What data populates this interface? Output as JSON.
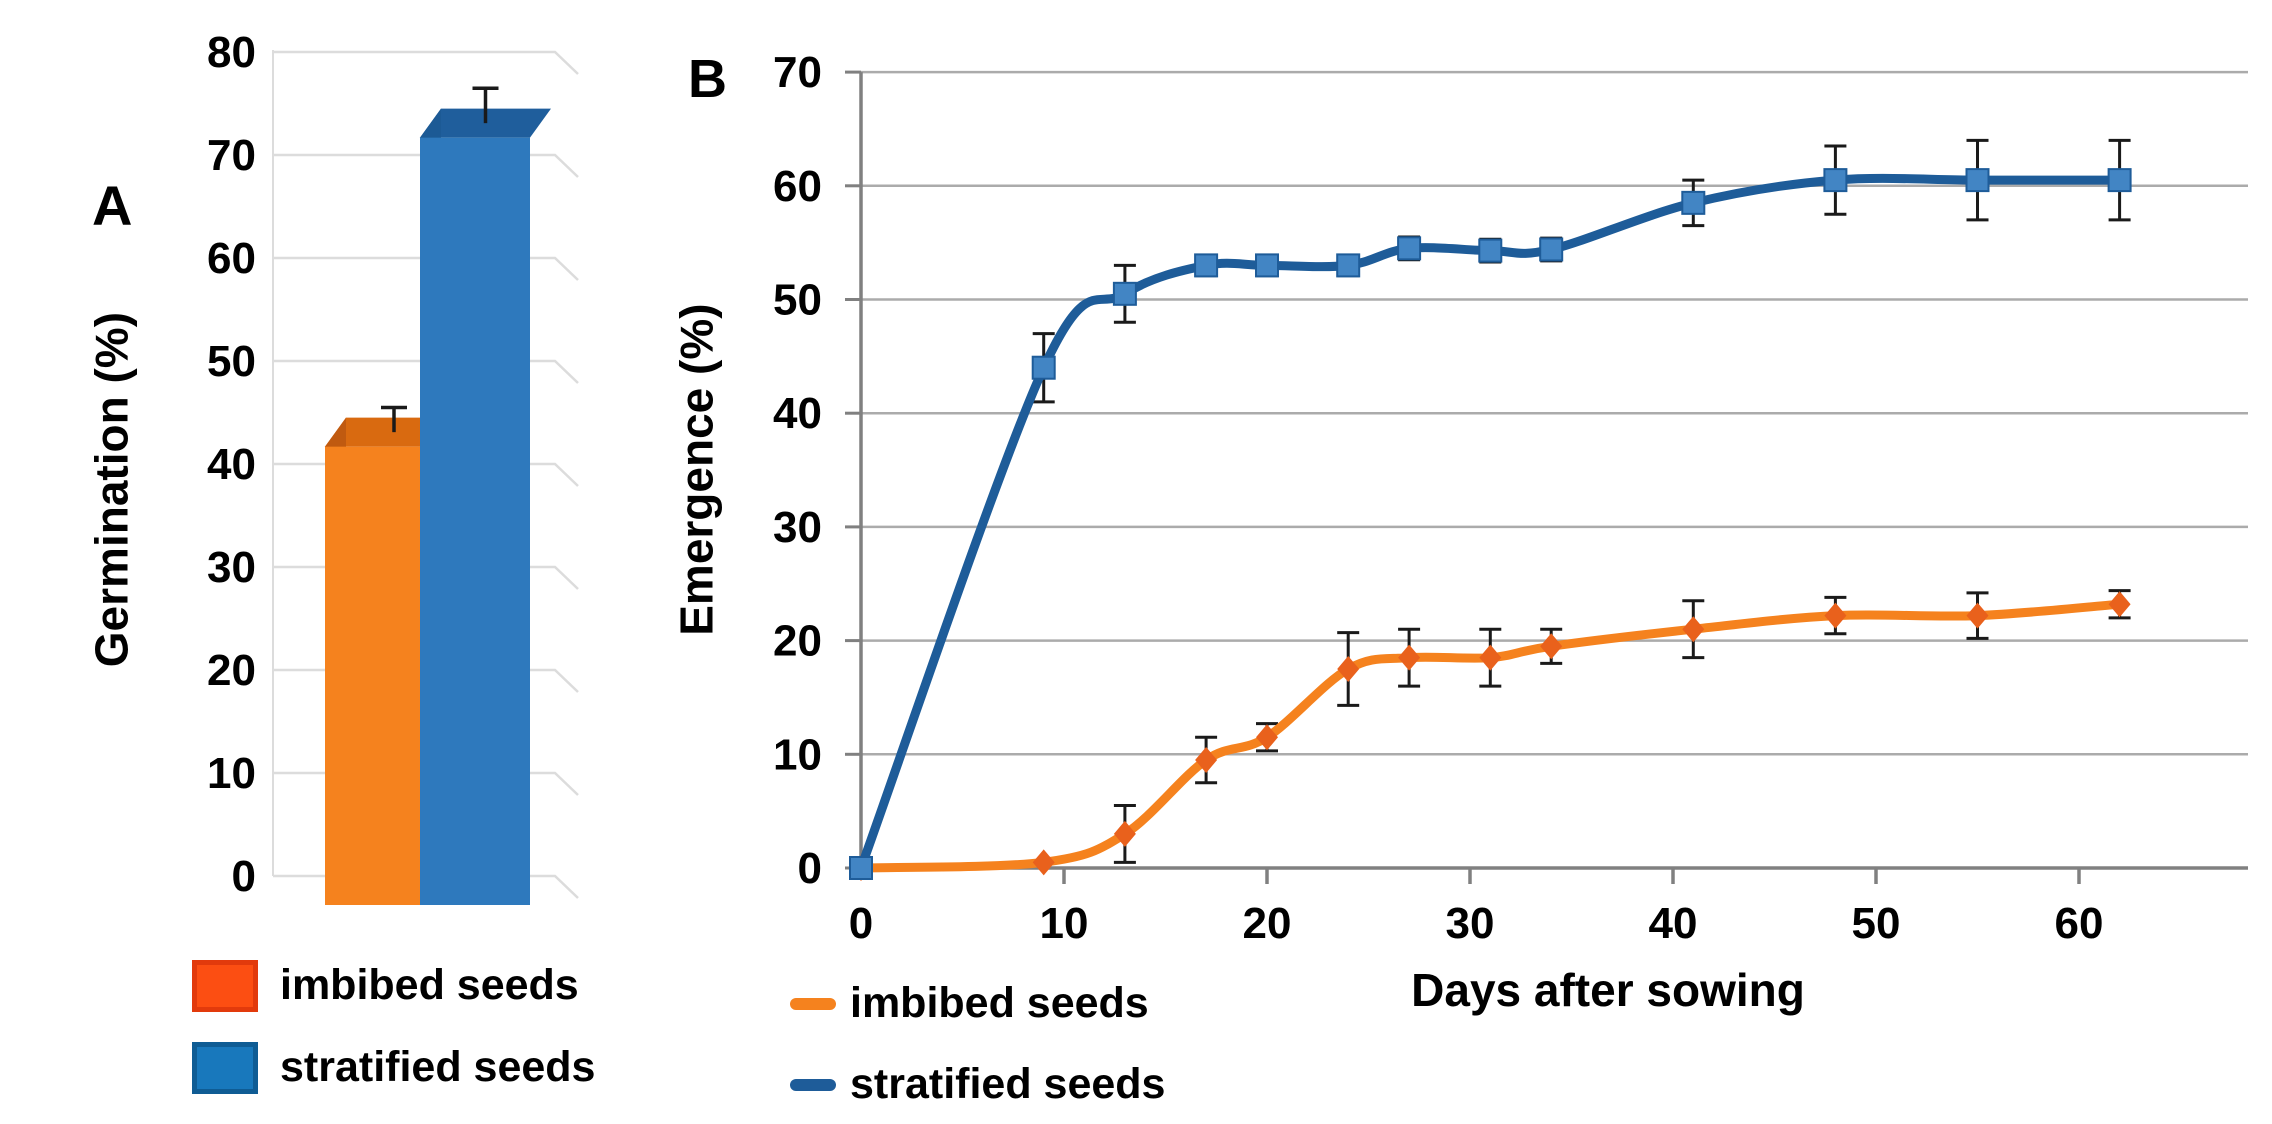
{
  "figure": {
    "background": "#ffffff",
    "panel_count": 2
  },
  "chart_data": [
    {
      "panel_label": "A",
      "type": "bar",
      "effect": "3d",
      "ylabel": "Germination (%)",
      "ylim": [
        0,
        80
      ],
      "yticks": [
        0,
        10,
        20,
        30,
        40,
        50,
        60,
        70,
        80
      ],
      "categories": [
        "imbibed seeds",
        "stratified seeds"
      ],
      "values": [
        44.5,
        74.5
      ],
      "errors": [
        2,
        3
      ],
      "grid": true,
      "grid_color": "#DCDCDC",
      "bars": [
        {
          "name": "imbibed seeds",
          "front": "#F5821E",
          "side": "#C05A10",
          "top": "#D96A10"
        },
        {
          "name": "stratified seeds",
          "front": "#2E79BD",
          "side": "#1C5A95",
          "top": "#1F5E9C"
        }
      ],
      "error_color": "#1A1A1A",
      "legend": [
        {
          "label": "imbibed seeds",
          "swatch": "#FC4E12",
          "swatch_border": "#E23A0C"
        },
        {
          "label": "stratified seeds",
          "swatch": "#1878BC",
          "swatch_border": "#0F5C94"
        }
      ],
      "legend_position": "below"
    },
    {
      "panel_label": "B",
      "type": "line",
      "xlabel": "Days after sowing",
      "ylabel": "Emergence (%)",
      "xlim": [
        0,
        65
      ],
      "ylim": [
        0,
        70
      ],
      "xticks": [
        0,
        10,
        20,
        30,
        40,
        50,
        60
      ],
      "yticks": [
        0,
        10,
        20,
        30,
        40,
        50,
        60,
        70
      ],
      "grid": true,
      "grid_color": "#ABABAB",
      "axis_color": "#808080",
      "error_color": "#1A1A1A",
      "x": [
        0,
        9,
        13,
        17,
        20,
        24,
        27,
        31,
        34,
        41,
        48,
        55,
        62
      ],
      "series": [
        {
          "name": "imbibed seeds",
          "color": "#F5821E",
          "marker": "diamond",
          "marker_color": "#E9611C",
          "values": [
            0,
            0.5,
            3,
            9.5,
            11.5,
            17.5,
            18.5,
            18.5,
            19.5,
            21,
            22.2,
            22.2,
            23.2
          ],
          "errors": [
            0,
            0,
            2.5,
            2,
            1.2,
            3.2,
            2.5,
            2.5,
            1.5,
            2.5,
            1.6,
            2,
            1.2
          ]
        },
        {
          "name": "stratified seeds",
          "color": "#1E5C99",
          "marker": "square",
          "marker_color": "#4285C4",
          "values": [
            0,
            44,
            50.5,
            53,
            53,
            53,
            54.5,
            54.3,
            54.4,
            58.5,
            60.5,
            60.5,
            60.5
          ],
          "errors": [
            0,
            3,
            2.5,
            0.9,
            0.9,
            0.9,
            1,
            1,
            1,
            2,
            3,
            3.5,
            3.5
          ]
        }
      ],
      "legend": [
        {
          "label": "imbibed seeds",
          "swatch": "#F5821E"
        },
        {
          "label": "stratified seeds",
          "swatch": "#1E5C99"
        }
      ],
      "legend_position": "below"
    }
  ]
}
